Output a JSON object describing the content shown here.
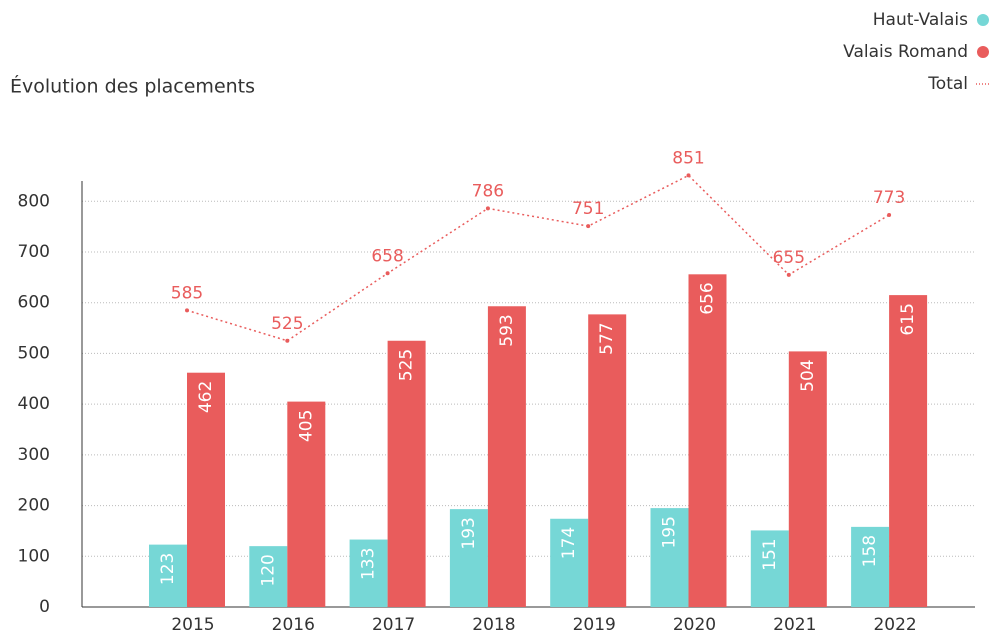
{
  "chart_data": {
    "type": "bar",
    "title": "Évolution des placements",
    "categories": [
      "2015",
      "2016",
      "2017",
      "2018",
      "2019",
      "2020",
      "2021",
      "2022"
    ],
    "series": [
      {
        "name": "Haut-Valais",
        "color": "#76d7d6",
        "values": [
          123,
          120,
          133,
          193,
          174,
          195,
          151,
          158
        ]
      },
      {
        "name": "Valais Romand",
        "color": "#e95c5c",
        "values": [
          462,
          405,
          525,
          593,
          577,
          656,
          504,
          615
        ]
      },
      {
        "name": "Total",
        "color": "#e95c5c",
        "type": "line",
        "values": [
          585,
          525,
          658,
          786,
          751,
          851,
          655,
          773
        ]
      }
    ],
    "ylim": [
      0,
      840
    ],
    "yticks": [
      0,
      100,
      200,
      300,
      400,
      500,
      600,
      700,
      800
    ],
    "grid": true,
    "legend": "top-right"
  }
}
